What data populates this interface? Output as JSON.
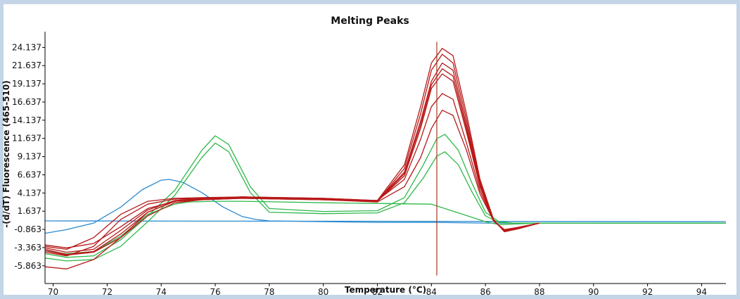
{
  "chart_data": {
    "type": "line",
    "title": "Melting Peaks",
    "xlabel": "Temperature (°C)",
    "ylabel": "-(d/dT) Fluorescence (465-510)",
    "xlim": [
      69.7,
      94.9
    ],
    "ylim": [
      -8.3,
      26.3
    ],
    "x_ticks": [
      "70",
      "72",
      "74",
      "76",
      "78",
      "80",
      "82",
      "84",
      "86",
      "88",
      "90",
      "92",
      "94"
    ],
    "x_tick_values": [
      70,
      72,
      74,
      76,
      78,
      80,
      82,
      84,
      86,
      88,
      90,
      92,
      94
    ],
    "y_ticks": [
      "24.137",
      "21.637",
      "19.137",
      "16.637",
      "14.137",
      "11.637",
      "9.137",
      "6.637",
      "4.137",
      "1.637",
      "-0.863",
      "-3.363",
      "-5.863"
    ],
    "y_tick_values": [
      24.137,
      21.637,
      19.137,
      16.637,
      14.137,
      11.637,
      9.137,
      6.637,
      4.137,
      1.637,
      -0.863,
      -3.363,
      -5.863
    ],
    "cursor_x": 84.2,
    "grid": false,
    "colors": {
      "red": "#b81818",
      "green": "#2fb84a",
      "blue": "#2a8ad0",
      "cursor": "#a33a1e"
    },
    "series": [
      {
        "color": "#2a8ad0",
        "x": [
          69.7,
          70.5,
          71.5,
          72.5,
          73.3,
          74.0,
          74.3,
          74.8,
          75.5,
          76.3,
          77.0,
          77.5,
          78.0,
          80.0,
          82.0,
          84.0,
          86.0,
          88.0,
          90.0,
          92.0,
          94.9
        ],
        "y": [
          -1.4,
          -0.9,
          0.0,
          2.2,
          4.6,
          5.9,
          6.0,
          5.6,
          4.2,
          2.2,
          0.9,
          0.5,
          0.3,
          0.2,
          0.1,
          0.1,
          0.0,
          0.0,
          0.0,
          0.0,
          0.0
        ]
      },
      {
        "color": "#2a8ad0",
        "x": [
          69.7,
          94.9
        ],
        "y": [
          0.3,
          0.2
        ]
      },
      {
        "color": "#2fb84a",
        "x": [
          69.7,
          70.5,
          71.5,
          72.5,
          73.5,
          74.5,
          75.5,
          76.0,
          76.5,
          77.3,
          78.0,
          80.0,
          82.0,
          83.0,
          83.7,
          84.2,
          84.5,
          85.0,
          85.5,
          86.0,
          86.5,
          87.0,
          88.0,
          94.9
        ],
        "y": [
          -4.2,
          -4.7,
          -4.5,
          -2.3,
          1.0,
          4.5,
          10.0,
          12.0,
          10.8,
          5.0,
          2.0,
          1.6,
          1.7,
          3.5,
          8.0,
          11.6,
          12.2,
          10.0,
          5.5,
          1.5,
          0.2,
          0.0,
          0.0,
          0.0
        ]
      },
      {
        "color": "#2fb84a",
        "x": [
          69.7,
          70.5,
          71.5,
          72.5,
          73.5,
          74.5,
          75.5,
          76.0,
          76.5,
          77.3,
          78.0,
          80.0,
          82.0,
          83.0,
          83.7,
          84.2,
          84.5,
          85.0,
          85.5,
          86.0,
          86.5,
          87.0,
          88.0,
          94.9
        ],
        "y": [
          -4.8,
          -5.2,
          -5.0,
          -3.2,
          0.2,
          3.8,
          9.0,
          11.0,
          9.8,
          4.2,
          1.5,
          1.3,
          1.4,
          2.8,
          6.2,
          9.2,
          9.8,
          8.0,
          4.3,
          1.0,
          0.1,
          0.0,
          0.0,
          0.0
        ]
      },
      {
        "color": "#2fb84a",
        "x": [
          69.7,
          70.5,
          71.5,
          72.5,
          73.5,
          74.5,
          75.0,
          76.0,
          77.0,
          80.0,
          82.0,
          84.0,
          86.0,
          86.5,
          88.0,
          94.9
        ],
        "y": [
          -3.8,
          -4.2,
          -3.9,
          -1.8,
          1.2,
          2.6,
          2.9,
          3.0,
          3.0,
          2.8,
          2.7,
          2.6,
          0.2,
          -0.2,
          0.0,
          0.0
        ]
      },
      {
        "color": "#b81818",
        "x": [
          69.7,
          70.5,
          71.5,
          72.5,
          73.5,
          74.5,
          75.5,
          77.0,
          80.0,
          82.0,
          83.0,
          83.6,
          84.0,
          84.4,
          84.8,
          85.3,
          85.8,
          86.3,
          86.7,
          87.2,
          88.0
        ],
        "y": [
          -6.0,
          -6.3,
          -5.0,
          -2.0,
          1.5,
          3.0,
          3.3,
          3.5,
          3.3,
          3.1,
          8.0,
          16.0,
          22.0,
          24.0,
          23.0,
          15.0,
          6.0,
          0.5,
          -1.2,
          -0.8,
          0.0
        ]
      },
      {
        "color": "#b81818",
        "x": [
          69.7,
          70.5,
          71.5,
          72.5,
          73.5,
          74.5,
          75.5,
          77.0,
          80.0,
          82.0,
          83.0,
          83.6,
          84.0,
          84.4,
          84.8,
          85.3,
          85.8,
          86.3,
          86.7,
          87.2,
          88.0
        ],
        "y": [
          -3.0,
          -3.4,
          -2.8,
          -0.5,
          2.0,
          3.0,
          3.2,
          3.4,
          3.2,
          3.0,
          7.5,
          15.0,
          21.0,
          23.2,
          22.0,
          14.2,
          5.7,
          0.4,
          -1.1,
          -0.7,
          0.0
        ]
      },
      {
        "color": "#b81818",
        "x": [
          69.7,
          70.5,
          71.5,
          72.5,
          73.5,
          74.5,
          75.5,
          77.0,
          80.0,
          82.0,
          83.0,
          83.6,
          84.0,
          84.4,
          84.8,
          85.3,
          85.8,
          86.3,
          86.7,
          87.2,
          88.0
        ],
        "y": [
          -3.4,
          -4.0,
          -3.6,
          -1.0,
          1.8,
          3.1,
          3.4,
          3.6,
          3.4,
          3.1,
          7.0,
          14.0,
          19.5,
          22.0,
          21.0,
          13.5,
          5.4,
          0.4,
          -1.1,
          -0.7,
          0.0
        ]
      },
      {
        "color": "#b81818",
        "x": [
          69.7,
          70.5,
          71.5,
          72.5,
          73.5,
          74.5,
          75.5,
          77.0,
          80.0,
          82.0,
          83.0,
          83.6,
          84.0,
          84.4,
          84.8,
          85.3,
          85.8,
          86.3,
          86.7,
          87.2,
          88.0
        ],
        "y": [
          -3.6,
          -4.3,
          -3.9,
          -1.5,
          1.5,
          3.0,
          3.3,
          3.5,
          3.3,
          3.0,
          6.8,
          13.5,
          19.0,
          21.2,
          20.2,
          13.0,
          5.2,
          0.3,
          -1.0,
          -0.7,
          0.0
        ]
      },
      {
        "color": "#b81818",
        "x": [
          69.7,
          70.5,
          71.5,
          72.5,
          73.5,
          74.5,
          75.5,
          77.0,
          80.0,
          82.0,
          83.0,
          83.6,
          84.0,
          84.4,
          84.8,
          85.3,
          85.8,
          86.3,
          86.7,
          87.2,
          88.0
        ],
        "y": [
          -4.0,
          -4.5,
          -3.2,
          0.5,
          2.6,
          3.3,
          3.4,
          3.6,
          3.3,
          3.0,
          6.5,
          13.0,
          18.5,
          20.5,
          19.5,
          12.5,
          5.0,
          0.3,
          -1.0,
          -0.6,
          0.0
        ]
      },
      {
        "color": "#b81818",
        "x": [
          69.7,
          70.5,
          71.5,
          72.5,
          73.5,
          74.5,
          75.5,
          77.0,
          80.0,
          82.0,
          83.0,
          83.6,
          84.0,
          84.4,
          84.8,
          85.3,
          85.8,
          86.3,
          86.7,
          87.2,
          88.0
        ],
        "y": [
          -3.2,
          -3.6,
          -2.0,
          1.2,
          3.0,
          3.4,
          3.5,
          3.6,
          3.4,
          3.1,
          6.0,
          11.5,
          16.0,
          17.8,
          17.0,
          11.0,
          4.5,
          0.3,
          -0.9,
          -0.6,
          0.0
        ]
      },
      {
        "color": "#b81818",
        "x": [
          69.7,
          70.5,
          71.5,
          72.5,
          73.5,
          74.5,
          75.5,
          77.0,
          80.0,
          82.0,
          83.0,
          83.6,
          84.0,
          84.4,
          84.8,
          85.3,
          85.8,
          86.3,
          86.7,
          87.2,
          88.0
        ],
        "y": [
          -3.8,
          -4.4,
          -4.0,
          -2.0,
          1.0,
          2.8,
          3.2,
          3.4,
          3.2,
          2.9,
          5.0,
          9.0,
          13.0,
          15.5,
          14.8,
          10.0,
          4.0,
          0.3,
          -0.9,
          -0.6,
          0.0
        ]
      }
    ]
  }
}
